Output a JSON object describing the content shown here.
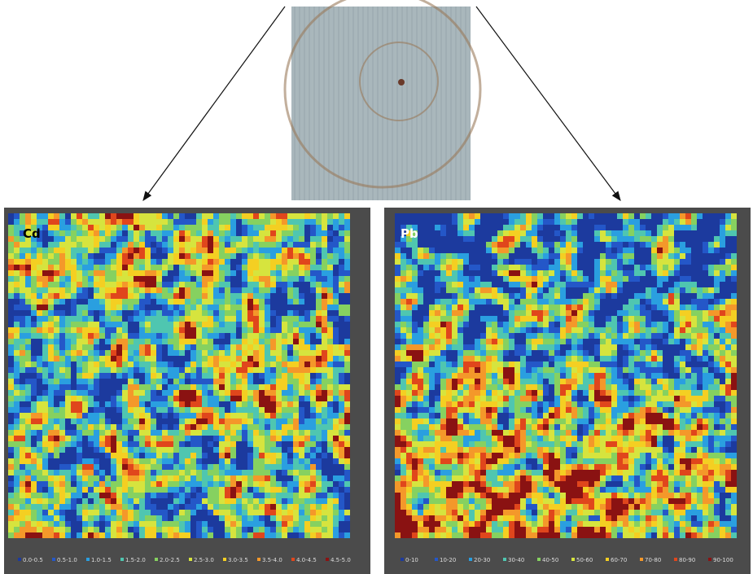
{
  "panels": [
    {
      "label": "Cd",
      "legend": [
        "0.0-0.5",
        "0.5-1.0",
        "1.0-1.5",
        "1.5-2.0",
        "2.0-2.5",
        "2.5-3.0",
        "3.0-3.5",
        "3.5-4.0",
        "4.0-4.5",
        "4.5-5.0"
      ]
    },
    {
      "label": "Pb",
      "legend": [
        "0-10",
        "10-20",
        "20-30",
        "30-40",
        "40-50",
        "50-60",
        "60-70",
        "70-80",
        "80-90",
        "90-100"
      ]
    }
  ]
}
